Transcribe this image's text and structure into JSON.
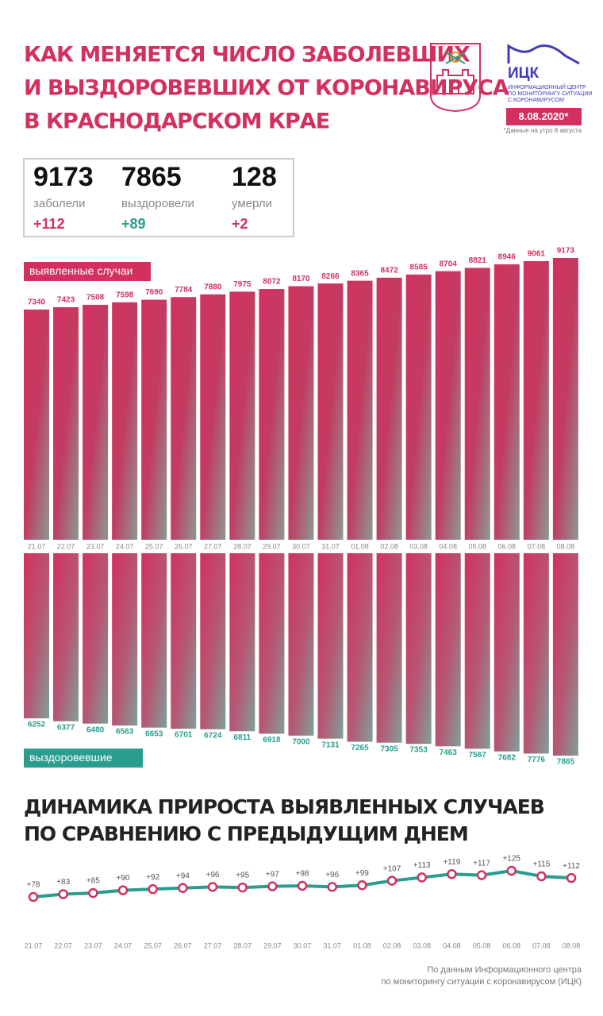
{
  "header": {
    "title": [
      "КАК МЕНЯЕТСЯ ЧИСЛО ЗАБОЛЕВШИХ",
      "И ВЫЗДОРОВЕВШИХ ОТ КОРОНАВИРУСА",
      "В КРАСНОДАРСКОМ КРАЕ"
    ],
    "logo": "ИЦК",
    "logo_caption": [
      "ИНФОРМАЦИОННЫЙ ЦЕНТР",
      "ПО МОНИТОРИНГУ СИТУАЦИИ",
      "С КОРОНАВИРУСОМ"
    ],
    "date": "8.08.2020*",
    "note": "*Данные на утро 8 августа"
  },
  "stats": [
    {
      "value": 9173,
      "label": "заболели",
      "change": "+112"
    },
    {
      "value": 7865,
      "label": "выздоровели",
      "change": "+89"
    },
    {
      "value": 128,
      "label": "умерли",
      "change": "+2"
    }
  ],
  "chart_data": [
    {
      "type": "bar",
      "categories": [
        "21.07",
        "22.07",
        "23.07",
        "24.07",
        "25.07",
        "26.07",
        "27.07",
        "28.07",
        "29.07",
        "30.07",
        "31.07",
        "01.08",
        "02.08",
        "03.08",
        "04.08",
        "05.08",
        "06.08",
        "07.08",
        "08.08"
      ],
      "series": [
        {
          "name": "выявленные случаи",
          "color": "#d2315f",
          "values": [
            7340,
            7423,
            7508,
            7598,
            7690,
            7784,
            7880,
            7975,
            8072,
            8170,
            8266,
            8365,
            8472,
            8585,
            8704,
            8821,
            8946,
            9061,
            9173
          ]
        }
      ]
    },
    {
      "type": "bar",
      "orientation": "down",
      "series": [
        {
          "name": "выздоровевшие",
          "color": "#2a9d8f",
          "values": [
            6252,
            6377,
            6480,
            6563,
            6653,
            6701,
            6724,
            6811,
            6918,
            7000,
            7131,
            7265,
            7305,
            7353,
            7463,
            7567,
            7682,
            7776,
            7865
          ]
        }
      ]
    },
    {
      "type": "line",
      "title": [
        "ДИНАМИКА ПРИРОСТА ВЫЯВЛЕННЫХ СЛУЧАЕВ",
        "ПО СРАВНЕНИЮ С ПРЕДЫДУЩИМ ДНЕМ"
      ],
      "categories": [
        "21.07",
        "22.07",
        "23.07",
        "24.07",
        "25.07",
        "26.07",
        "27.07",
        "28.07",
        "29.07",
        "30.07",
        "31.07",
        "01.08",
        "02.08",
        "03.08",
        "04.08",
        "05.08",
        "06.08",
        "07.08",
        "08.08"
      ],
      "color": "#2a9d8f",
      "marker_color": "#d2315f",
      "values": [
        78,
        83,
        85,
        90,
        92,
        94,
        96,
        95,
        97,
        98,
        96,
        99,
        107,
        113,
        119,
        117,
        125,
        115,
        112
      ],
      "value_labels": [
        "+78",
        "+83",
        "+85",
        "+90",
        "+92",
        "+94",
        "+96",
        "+95",
        "+97",
        "+98",
        "+96",
        "+99",
        "+107",
        "+113",
        "+119",
        "+117",
        "+125",
        "+115",
        "+112"
      ]
    }
  ],
  "footer": [
    "По данным Информационного центра",
    "по мониторингу ситуации с коронавирусом (ИЦК)"
  ]
}
